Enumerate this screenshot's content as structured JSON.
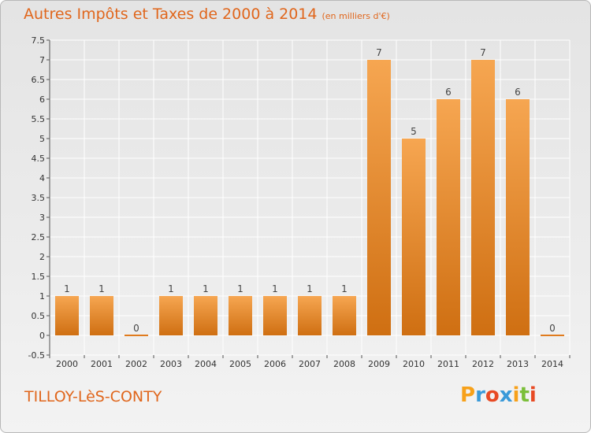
{
  "header": {
    "title": "Autres Impôts et Taxes de 2000 à 2014",
    "unit": "(en milliers d'€)"
  },
  "footer": {
    "commune": "TILLOY-LèS-CONTY",
    "brand_letters": [
      "P",
      "r",
      "o",
      "x",
      "i",
      "t",
      "i"
    ],
    "brand_colors": [
      "#f7a11a",
      "#3a9ad9",
      "#e84a24",
      "#3a9ad9",
      "#f7a11a",
      "#7bbf3a",
      "#e84a24"
    ]
  },
  "chart_data": {
    "type": "bar",
    "categories": [
      "2000",
      "2001",
      "2002",
      "2003",
      "2004",
      "2005",
      "2006",
      "2007",
      "2008",
      "2009",
      "2010",
      "2011",
      "2012",
      "2013",
      "2014"
    ],
    "values": [
      1,
      1,
      0,
      1,
      1,
      1,
      1,
      1,
      1,
      7,
      5,
      6,
      7,
      6,
      0
    ],
    "data_labels": [
      "1",
      "1",
      "0",
      "1",
      "1",
      "1",
      "1",
      "1",
      "1",
      "7",
      "5",
      "6",
      "7",
      "6",
      "0"
    ],
    "title": "Autres Impôts et Taxes de 2000 à 2014",
    "xlabel": "",
    "ylabel": "",
    "ylim": [
      -0.5,
      7.5
    ],
    "yticks": [
      "-0.5",
      "0",
      "0.5",
      "1",
      "1.5",
      "2",
      "2.5",
      "3",
      "3.5",
      "4",
      "4.5",
      "5",
      "5.5",
      "6",
      "6.5",
      "7",
      "7.5"
    ],
    "ytick_values": [
      -0.5,
      0,
      0.5,
      1,
      1.5,
      2,
      2.5,
      3,
      3.5,
      4,
      4.5,
      5,
      5.5,
      6,
      6.5,
      7,
      7.5
    ],
    "grid": true,
    "bar_color_top": "#f6a651",
    "bar_color_bottom": "#cf6f12",
    "zero_bar_color": "#e07b1e"
  }
}
